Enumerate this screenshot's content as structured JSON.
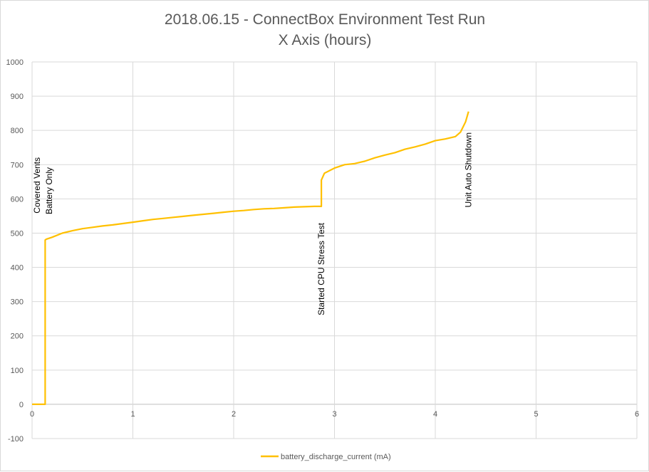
{
  "chart_data": {
    "type": "line",
    "title": "2018.06.15 - ConnectBox Environment Test Run",
    "subtitle": "X Axis (hours)",
    "xlim": [
      0,
      6
    ],
    "ylim": [
      -100,
      1000
    ],
    "x_ticks": [
      0,
      1,
      2,
      3,
      4,
      5,
      6
    ],
    "x_tick_labels": [
      "0",
      "1",
      "2",
      "3",
      "4",
      "5",
      "6"
    ],
    "y_ticks": [
      -100,
      0,
      100,
      200,
      300,
      400,
      500,
      600,
      700,
      800,
      900,
      1000
    ],
    "y_tick_labels": [
      "-100",
      "0",
      "100",
      "200",
      "300",
      "400",
      "500",
      "600",
      "700",
      "800",
      "900",
      "1000"
    ],
    "grid": "horizontal and vertical major gridlines",
    "legend_position": "bottom",
    "series": [
      {
        "name": "battery_discharge_current (mA)",
        "color": "#ffc000",
        "x": [
          0,
          0.13,
          0.13,
          0.14,
          0.2,
          0.3,
          0.4,
          0.5,
          0.6,
          0.7,
          0.8,
          0.9,
          1.0,
          1.1,
          1.2,
          1.3,
          1.4,
          1.5,
          1.6,
          1.7,
          1.8,
          1.9,
          2.0,
          2.1,
          2.2,
          2.3,
          2.4,
          2.5,
          2.6,
          2.7,
          2.8,
          2.87,
          2.87,
          2.9,
          3.0,
          3.1,
          3.2,
          3.3,
          3.4,
          3.5,
          3.6,
          3.7,
          3.8,
          3.9,
          4.0,
          4.1,
          4.2,
          4.25,
          4.3,
          4.33
        ],
        "y": [
          0,
          0,
          480,
          482,
          488,
          500,
          507,
          513,
          517,
          521,
          524,
          528,
          532,
          536,
          540,
          543,
          546,
          549,
          552,
          555,
          558,
          561,
          564,
          566,
          569,
          571,
          572,
          574,
          576,
          577,
          578,
          578,
          655,
          675,
          690,
          700,
          703,
          710,
          720,
          728,
          735,
          745,
          752,
          760,
          770,
          775,
          782,
          795,
          825,
          855
        ]
      }
    ],
    "annotations": [
      {
        "text": "Covered Vents",
        "x": 0.05
      },
      {
        "text": "Battery Only",
        "x": 0.17
      },
      {
        "text": "Started CPU Stress Test",
        "x": 2.87
      },
      {
        "text": "Unit Auto Shutdown",
        "x": 4.33
      }
    ]
  }
}
